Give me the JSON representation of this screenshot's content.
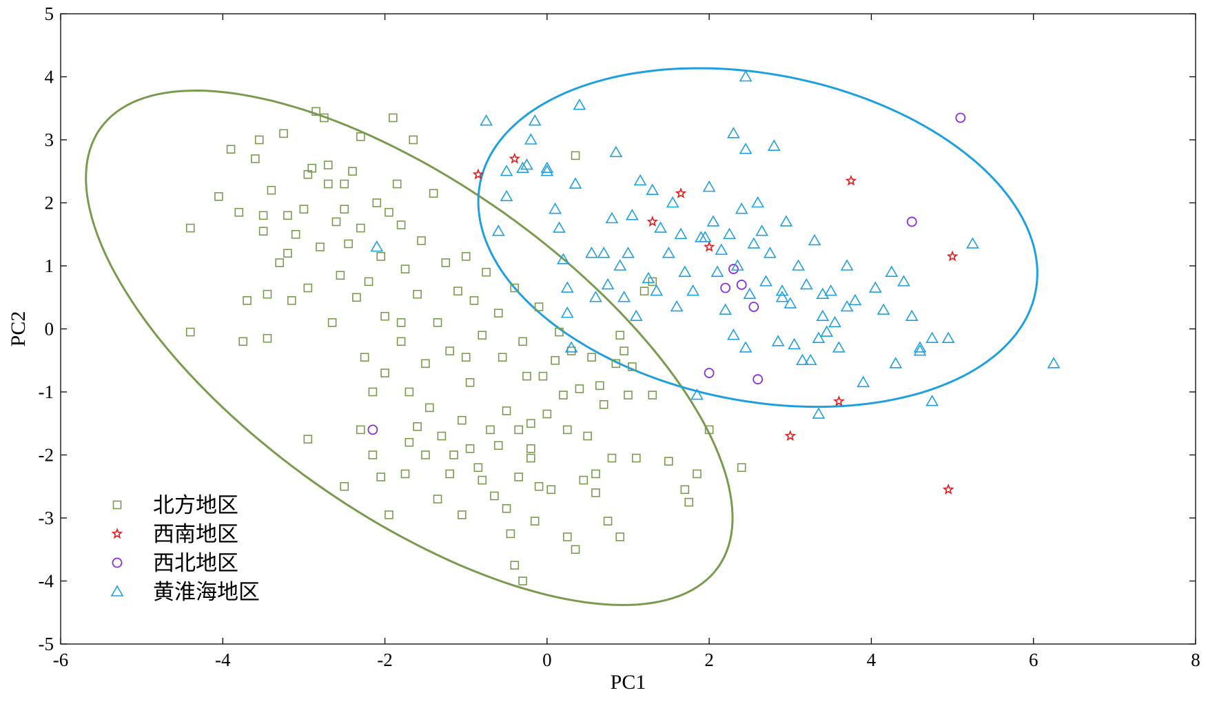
{
  "chart_data": {
    "type": "scatter",
    "xlabel": "PC1",
    "ylabel": "PC2",
    "xlim": [
      -6,
      8
    ],
    "ylim": [
      -5,
      5
    ],
    "xticks": [
      -6,
      -4,
      -2,
      0,
      2,
      4,
      6,
      8
    ],
    "yticks": [
      -5,
      -4,
      -3,
      -2,
      -1,
      0,
      1,
      2,
      3,
      4,
      5
    ],
    "xtick_labels": [
      "-6",
      "-4",
      "-2",
      "0",
      "2",
      "4",
      "6",
      "8"
    ],
    "ytick_labels": [
      "-5",
      "-4",
      "-3",
      "-2",
      "-1",
      "0",
      "1",
      "2",
      "3",
      "4",
      "5"
    ],
    "grid": false,
    "legend_position": "bottom-left",
    "series": [
      {
        "name": "北方地区",
        "marker": "square",
        "color": "#7a9a4e",
        "points": [
          [
            -4.4,
            1.6
          ],
          [
            -4.4,
            -0.05
          ],
          [
            -4.05,
            2.1
          ],
          [
            -3.9,
            2.85
          ],
          [
            -3.8,
            1.85
          ],
          [
            -3.75,
            -0.2
          ],
          [
            -3.7,
            0.45
          ],
          [
            -3.6,
            2.7
          ],
          [
            -3.55,
            3.0
          ],
          [
            -3.5,
            1.55
          ],
          [
            -3.5,
            1.8
          ],
          [
            -3.45,
            0.55
          ],
          [
            -3.45,
            -0.15
          ],
          [
            -3.4,
            2.2
          ],
          [
            -3.3,
            1.05
          ],
          [
            -3.25,
            3.1
          ],
          [
            -3.2,
            1.2
          ],
          [
            -3.2,
            1.8
          ],
          [
            -3.15,
            0.45
          ],
          [
            -3.1,
            1.5
          ],
          [
            -3.0,
            1.9
          ],
          [
            -2.95,
            0.65
          ],
          [
            -2.95,
            2.45
          ],
          [
            -2.9,
            2.55
          ],
          [
            -2.85,
            3.45
          ],
          [
            -2.8,
            1.3
          ],
          [
            -2.75,
            3.35
          ],
          [
            -2.7,
            2.6
          ],
          [
            -2.7,
            2.3
          ],
          [
            -2.65,
            0.1
          ],
          [
            -2.6,
            1.7
          ],
          [
            -2.55,
            0.85
          ],
          [
            -2.5,
            1.9
          ],
          [
            -2.5,
            2.3
          ],
          [
            -2.45,
            1.35
          ],
          [
            -2.4,
            2.5
          ],
          [
            -2.35,
            0.5
          ],
          [
            -2.3,
            1.6
          ],
          [
            -2.3,
            3.05
          ],
          [
            -2.25,
            -0.45
          ],
          [
            -2.2,
            0.75
          ],
          [
            -2.15,
            -1.0
          ],
          [
            -2.1,
            2.0
          ],
          [
            -2.05,
            1.15
          ],
          [
            -2.0,
            0.2
          ],
          [
            -2.0,
            -0.7
          ],
          [
            -1.95,
            1.85
          ],
          [
            -1.9,
            3.35
          ],
          [
            -1.85,
            2.3
          ],
          [
            -1.8,
            1.65
          ],
          [
            -1.8,
            -0.2
          ],
          [
            -1.75,
            0.95
          ],
          [
            -1.7,
            -1.0
          ],
          [
            -1.7,
            -1.8
          ],
          [
            -1.65,
            3.0
          ],
          [
            -1.6,
            0.55
          ],
          [
            -1.55,
            1.4
          ],
          [
            -1.5,
            -0.55
          ],
          [
            -1.45,
            -1.25
          ],
          [
            -1.4,
            2.15
          ],
          [
            -1.35,
            0.1
          ],
          [
            -1.3,
            -1.7
          ],
          [
            -1.25,
            1.05
          ],
          [
            -1.2,
            -0.35
          ],
          [
            -1.15,
            -2.0
          ],
          [
            -1.1,
            0.6
          ],
          [
            -1.05,
            -1.45
          ],
          [
            -1.0,
            1.15
          ],
          [
            -0.95,
            -0.85
          ],
          [
            -0.9,
            0.45
          ],
          [
            -0.85,
            -2.2
          ],
          [
            -0.8,
            -0.1
          ],
          [
            -0.75,
            0.9
          ],
          [
            -0.7,
            -1.6
          ],
          [
            -0.65,
            -2.65
          ],
          [
            -0.6,
            0.25
          ],
          [
            -0.55,
            -0.45
          ],
          [
            -0.5,
            -1.3
          ],
          [
            -0.45,
            -3.25
          ],
          [
            -0.4,
            0.65
          ],
          [
            -0.35,
            -2.35
          ],
          [
            -0.3,
            -0.2
          ],
          [
            -0.25,
            -0.75
          ],
          [
            -0.2,
            -1.5
          ],
          [
            -0.15,
            -3.05
          ],
          [
            -0.1,
            0.35
          ],
          [
            -0.05,
            -0.75
          ],
          [
            0.0,
            -1.35
          ],
          [
            0.05,
            -2.55
          ],
          [
            0.1,
            -0.5
          ],
          [
            0.15,
            -0.05
          ],
          [
            0.2,
            -1.05
          ],
          [
            0.25,
            -1.6
          ],
          [
            0.3,
            -0.35
          ],
          [
            0.35,
            -3.5
          ],
          [
            0.4,
            -0.95
          ],
          [
            0.45,
            -2.4
          ],
          [
            0.5,
            -1.7
          ],
          [
            0.55,
            -0.45
          ],
          [
            0.6,
            -2.6
          ],
          [
            0.65,
            -0.9
          ],
          [
            0.7,
            -1.2
          ],
          [
            0.75,
            -3.05
          ],
          [
            0.8,
            -2.05
          ],
          [
            0.85,
            -0.55
          ],
          [
            0.9,
            -3.3
          ],
          [
            1.0,
            -1.05
          ],
          [
            1.1,
            -2.05
          ],
          [
            1.3,
            -1.05
          ],
          [
            1.5,
            -2.1
          ],
          [
            1.7,
            -2.55
          ],
          [
            1.75,
            -2.75
          ],
          [
            1.85,
            -2.3
          ],
          [
            2.0,
            -1.6
          ],
          [
            2.4,
            -2.2
          ],
          [
            -2.95,
            -1.75
          ],
          [
            -2.5,
            -2.5
          ],
          [
            -2.3,
            -1.6
          ],
          [
            -2.15,
            -2.0
          ],
          [
            -2.05,
            -2.35
          ],
          [
            -1.95,
            -2.95
          ],
          [
            -1.75,
            -2.3
          ],
          [
            -1.6,
            -1.55
          ],
          [
            -1.5,
            -2.0
          ],
          [
            -1.35,
            -2.7
          ],
          [
            -1.2,
            -2.3
          ],
          [
            -1.05,
            -2.95
          ],
          [
            -0.95,
            -1.9
          ],
          [
            -0.8,
            -2.4
          ],
          [
            -0.6,
            -1.85
          ],
          [
            -0.5,
            -2.85
          ],
          [
            -0.35,
            -1.6
          ],
          [
            -0.2,
            -2.05
          ],
          [
            -0.1,
            -2.5
          ],
          [
            0.25,
            -3.3
          ],
          [
            -0.3,
            -4.0
          ],
          [
            -0.4,
            -3.75
          ],
          [
            0.6,
            -2.3
          ],
          [
            1.05,
            -0.6
          ],
          [
            0.95,
            -0.35
          ],
          [
            0.9,
            -0.1
          ],
          [
            1.2,
            0.6
          ],
          [
            1.3,
            0.75
          ],
          [
            0.35,
            2.75
          ],
          [
            -0.2,
            -1.9
          ],
          [
            -1.0,
            -0.45
          ],
          [
            -1.8,
            0.1
          ]
        ]
      },
      {
        "name": "西南地区",
        "marker": "star",
        "color": "#e31a1c",
        "points": [
          [
            -0.85,
            2.45
          ],
          [
            -0.4,
            2.7
          ],
          [
            1.3,
            1.7
          ],
          [
            1.65,
            2.15
          ],
          [
            2.0,
            1.3
          ],
          [
            3.0,
            -1.7
          ],
          [
            3.6,
            -1.15
          ],
          [
            3.75,
            2.35
          ],
          [
            4.95,
            -2.55
          ],
          [
            5.0,
            1.15
          ]
        ]
      },
      {
        "name": "西北地区",
        "marker": "circle",
        "color": "#8a2be2",
        "points": [
          [
            -2.15,
            -1.6
          ],
          [
            2.0,
            -0.7
          ],
          [
            2.2,
            0.65
          ],
          [
            2.3,
            0.95
          ],
          [
            2.4,
            0.7
          ],
          [
            2.55,
            0.35
          ],
          [
            2.6,
            -0.8
          ],
          [
            4.5,
            1.7
          ],
          [
            5.1,
            3.35
          ]
        ]
      },
      {
        "name": "黄淮海地区",
        "marker": "triangle",
        "color": "#1e9fe0",
        "points": [
          [
            -2.1,
            1.3
          ],
          [
            -0.6,
            1.55
          ],
          [
            -0.75,
            3.3
          ],
          [
            -0.5,
            2.5
          ],
          [
            -0.5,
            2.1
          ],
          [
            -0.3,
            2.55
          ],
          [
            -0.25,
            2.6
          ],
          [
            -0.2,
            3.0
          ],
          [
            -0.15,
            3.3
          ],
          [
            0.0,
            2.5
          ],
          [
            0.0,
            2.55
          ],
          [
            0.1,
            1.9
          ],
          [
            0.15,
            1.6
          ],
          [
            0.2,
            1.1
          ],
          [
            0.25,
            0.65
          ],
          [
            0.25,
            0.25
          ],
          [
            0.3,
            -0.3
          ],
          [
            0.35,
            2.3
          ],
          [
            0.4,
            3.55
          ],
          [
            0.55,
            1.2
          ],
          [
            0.6,
            0.5
          ],
          [
            0.7,
            1.2
          ],
          [
            0.75,
            0.7
          ],
          [
            0.8,
            1.75
          ],
          [
            0.85,
            2.8
          ],
          [
            0.9,
            1.0
          ],
          [
            0.95,
            0.5
          ],
          [
            1.0,
            1.2
          ],
          [
            1.05,
            1.8
          ],
          [
            1.1,
            0.2
          ],
          [
            1.15,
            2.35
          ],
          [
            1.25,
            0.8
          ],
          [
            1.3,
            2.2
          ],
          [
            1.35,
            0.6
          ],
          [
            1.4,
            1.6
          ],
          [
            1.5,
            1.2
          ],
          [
            1.55,
            2.0
          ],
          [
            1.6,
            0.35
          ],
          [
            1.65,
            1.5
          ],
          [
            1.7,
            0.9
          ],
          [
            1.8,
            0.6
          ],
          [
            1.85,
            -1.05
          ],
          [
            1.9,
            1.45
          ],
          [
            2.0,
            2.25
          ],
          [
            2.05,
            1.7
          ],
          [
            2.1,
            0.9
          ],
          [
            2.15,
            1.25
          ],
          [
            2.2,
            0.3
          ],
          [
            2.25,
            1.5
          ],
          [
            2.3,
            -0.1
          ],
          [
            2.35,
            1.0
          ],
          [
            2.4,
            1.9
          ],
          [
            2.45,
            -0.3
          ],
          [
            2.5,
            0.55
          ],
          [
            2.55,
            1.35
          ],
          [
            2.6,
            2.0
          ],
          [
            2.7,
            0.75
          ],
          [
            2.75,
            1.2
          ],
          [
            2.8,
            2.9
          ],
          [
            2.85,
            -0.2
          ],
          [
            2.9,
            0.6
          ],
          [
            2.95,
            1.7
          ],
          [
            3.0,
            0.4
          ],
          [
            3.1,
            1.0
          ],
          [
            3.15,
            -0.5
          ],
          [
            3.2,
            0.7
          ],
          [
            3.3,
            1.4
          ],
          [
            3.35,
            -0.15
          ],
          [
            3.4,
            0.2
          ],
          [
            3.45,
            -0.05
          ],
          [
            3.5,
            0.6
          ],
          [
            3.55,
            0.1
          ],
          [
            3.6,
            -0.3
          ],
          [
            3.7,
            1.0
          ],
          [
            3.8,
            0.45
          ],
          [
            3.9,
            -0.85
          ],
          [
            4.05,
            0.65
          ],
          [
            4.15,
            0.3
          ],
          [
            4.25,
            0.9
          ],
          [
            4.4,
            0.75
          ],
          [
            4.5,
            0.2
          ],
          [
            4.6,
            -0.35
          ],
          [
            4.75,
            -0.15
          ],
          [
            4.75,
            -1.15
          ],
          [
            4.95,
            -0.15
          ],
          [
            5.25,
            1.35
          ],
          [
            6.25,
            -0.55
          ],
          [
            2.45,
            4.0
          ],
          [
            2.3,
            3.1
          ],
          [
            2.45,
            2.85
          ],
          [
            1.95,
            1.45
          ],
          [
            2.65,
            1.55
          ],
          [
            3.25,
            -0.5
          ],
          [
            3.35,
            -1.35
          ],
          [
            3.05,
            -0.25
          ],
          [
            3.4,
            0.55
          ],
          [
            2.9,
            0.5
          ],
          [
            3.7,
            0.35
          ],
          [
            4.6,
            -0.3
          ],
          [
            4.3,
            -0.55
          ]
        ]
      }
    ],
    "ellipses": [
      {
        "series": "北方地区",
        "center": [
          -1.7,
          -0.3
        ],
        "semi_axes": [
          5.2,
          2.35
        ],
        "angle_deg": -46,
        "color": "#7a9a4e"
      },
      {
        "series": "黄淮海地区",
        "center": [
          2.6,
          1.45
        ],
        "semi_axes": [
          3.55,
          2.55
        ],
        "angle_deg": -20,
        "color": "#1e9fe0"
      }
    ]
  }
}
